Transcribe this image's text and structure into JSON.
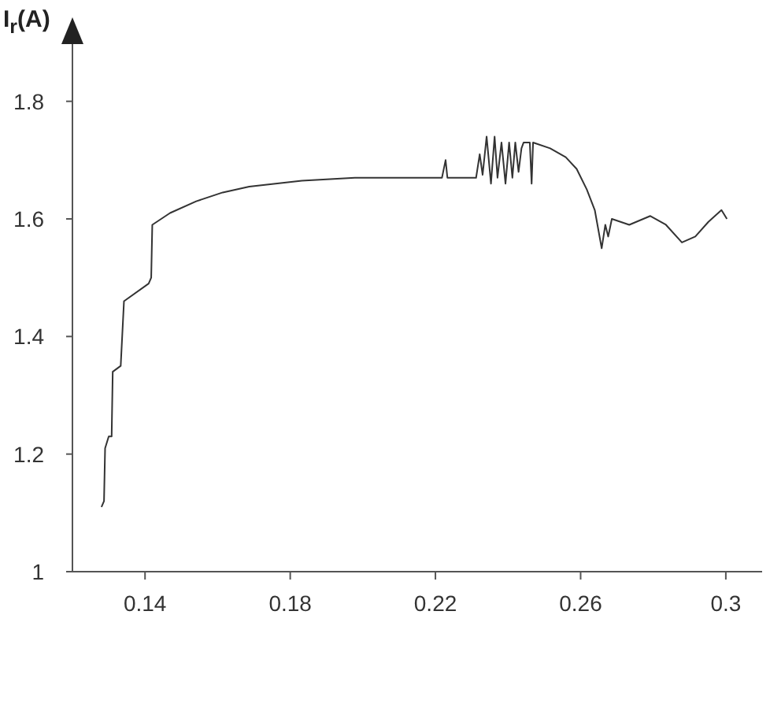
{
  "chart_data": {
    "type": "line",
    "ylabel": "I$_{r}$(A)",
    "x": [
      0.128,
      0.1287,
      0.129,
      0.13,
      0.1308,
      0.1311,
      0.1333,
      0.1342,
      0.141,
      0.1417,
      0.142,
      0.1469,
      0.1541,
      0.1614,
      0.1687,
      0.1832,
      0.1978,
      0.211,
      0.2218,
      0.2228,
      0.2233,
      0.2312,
      0.2322,
      0.233,
      0.2341,
      0.2353,
      0.2363,
      0.2371,
      0.2382,
      0.2393,
      0.2403,
      0.2412,
      0.242,
      0.2429,
      0.2437,
      0.2443,
      0.246,
      0.2465,
      0.2469,
      0.2516,
      0.2559,
      0.2589,
      0.2617,
      0.2639,
      0.2658,
      0.2668,
      0.2676,
      0.2686,
      0.2734,
      0.2792,
      0.2835,
      0.2879,
      0.2916,
      0.2952,
      0.2988,
      0.3003
    ],
    "series": [
      {
        "color": "#333333",
        "values": [
          1.11,
          1.12,
          1.21,
          1.23,
          1.23,
          1.34,
          1.35,
          1.46,
          1.49,
          1.5,
          1.59,
          1.61,
          1.63,
          1.645,
          1.655,
          1.665,
          1.67,
          1.67,
          1.67,
          1.7,
          1.67,
          1.67,
          1.71,
          1.675,
          1.74,
          1.66,
          1.74,
          1.67,
          1.73,
          1.66,
          1.73,
          1.67,
          1.73,
          1.68,
          1.72,
          1.73,
          1.73,
          1.66,
          1.73,
          1.72,
          1.705,
          1.685,
          1.65,
          1.615,
          1.55,
          1.59,
          1.57,
          1.6,
          1.59,
          1.605,
          1.59,
          1.56,
          1.57,
          1.595,
          1.615,
          1.6
        ]
      }
    ],
    "xlim": [
      0.12,
      0.31
    ],
    "xticks": [
      0.14,
      0.18,
      0.22,
      0.26,
      0.3
    ],
    "ylim": [
      1,
      1.9
    ],
    "yticks": [
      1,
      1.2,
      1.4,
      1.6,
      1.8
    ],
    "grid": false
  }
}
